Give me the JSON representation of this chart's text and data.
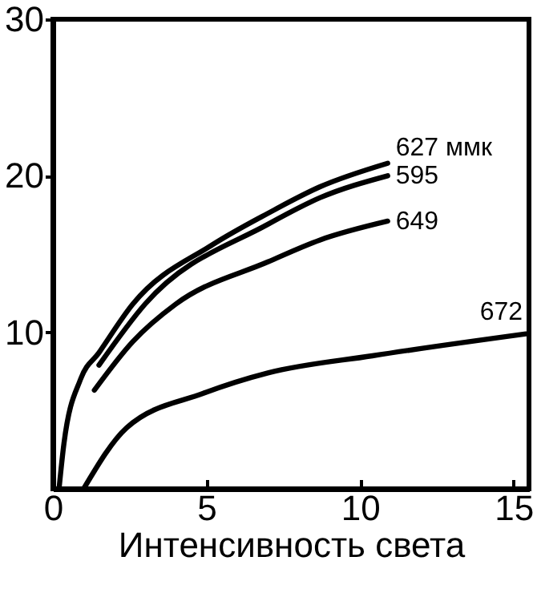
{
  "chart_data": {
    "type": "line",
    "xlabel": "Интенсивность света",
    "xlim": [
      0,
      15.5
    ],
    "ylim": [
      0,
      30
    ],
    "xticks": [
      0,
      5,
      10,
      15
    ],
    "yticks": [
      10,
      20,
      30
    ],
    "marker": "none",
    "line_style": "solid",
    "series": [
      {
        "name": "627 ммк",
        "color": "#000000",
        "x": [
          0.2,
          0.36,
          0.9,
          1.5,
          2.6,
          5.2,
          7.0,
          8.7,
          10.9
        ],
        "values": [
          0,
          2.9,
          7,
          8.7,
          11.8,
          15.6,
          17.6,
          19.3,
          20.8
        ]
      },
      {
        "name": "595",
        "color": "#000000",
        "x": [
          1.5,
          3.0,
          7.0,
          8.7,
          10.9
        ],
        "values": [
          7.9,
          11.8,
          16.9,
          18.6,
          20.0
        ]
      },
      {
        "name": "649",
        "color": "#000000",
        "x": [
          1.35,
          2.6,
          4.0,
          7.0,
          8.7,
          10.9
        ],
        "values": [
          6.3,
          9.4,
          11.8,
          14.5,
          15.9,
          17.1
        ]
      },
      {
        "name": "672",
        "color": "#000000",
        "x": [
          1.0,
          2.4,
          4.9,
          7.0,
          10.4,
          15.4
        ],
        "values": [
          0,
          3.9,
          6.1,
          7.4,
          8.5,
          9.9
        ]
      }
    ]
  }
}
